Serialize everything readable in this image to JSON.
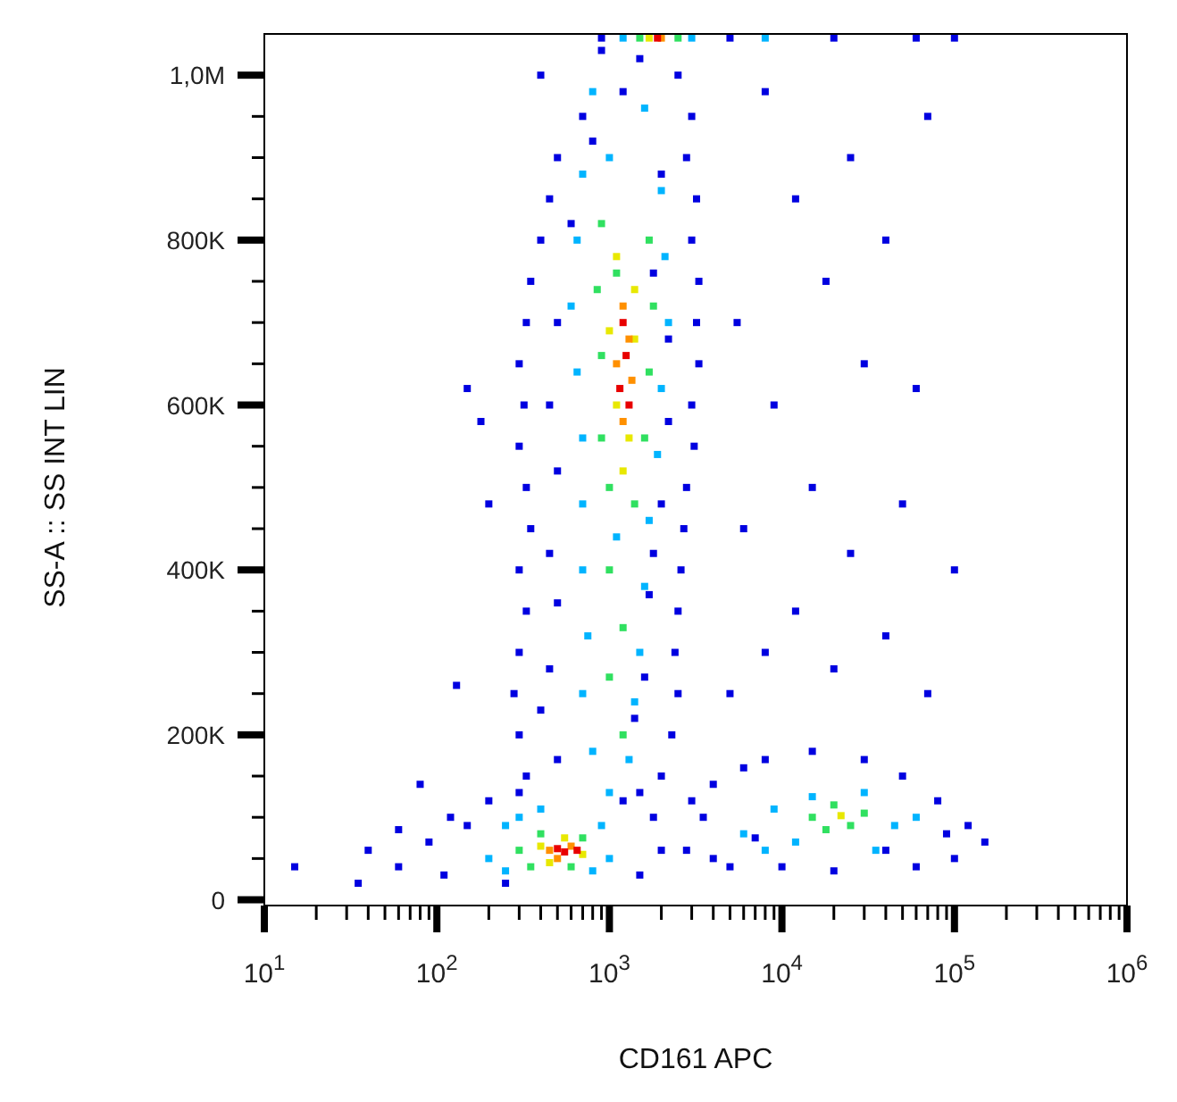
{
  "chart_data": {
    "type": "scatter",
    "xlabel": "CD161 APC",
    "ylabel": "SS-A :: SS INT LIN",
    "log": "x",
    "marker": "square",
    "xlim": [
      10,
      1000000
    ],
    "ylim": [
      -7000,
      1050000
    ],
    "xticks": [
      {
        "value": 10,
        "label": "10$^{1}$"
      },
      {
        "value": 20,
        "label": null
      },
      {
        "value": 30,
        "label": null
      },
      {
        "value": 40,
        "label": null
      },
      {
        "value": 50,
        "label": null
      },
      {
        "value": 60,
        "label": null
      },
      {
        "value": 70,
        "label": null
      },
      {
        "value": 80,
        "label": null
      },
      {
        "value": 90,
        "label": null
      },
      {
        "value": 100,
        "label": "10$^{2}$"
      },
      {
        "value": 200,
        "label": null
      },
      {
        "value": 300,
        "label": null
      },
      {
        "value": 400,
        "label": null
      },
      {
        "value": 500,
        "label": null
      },
      {
        "value": 600,
        "label": null
      },
      {
        "value": 700,
        "label": null
      },
      {
        "value": 800,
        "label": null
      },
      {
        "value": 900,
        "label": null
      },
      {
        "value": 1000,
        "label": "10$^{3}$"
      },
      {
        "value": 2000,
        "label": null
      },
      {
        "value": 3000,
        "label": null
      },
      {
        "value": 4000,
        "label": null
      },
      {
        "value": 5000,
        "label": null
      },
      {
        "value": 6000,
        "label": null
      },
      {
        "value": 7000,
        "label": null
      },
      {
        "value": 8000,
        "label": null
      },
      {
        "value": 9000,
        "label": null
      },
      {
        "value": 10000,
        "label": "10$^{4}$"
      },
      {
        "value": 20000,
        "label": null
      },
      {
        "value": 30000,
        "label": null
      },
      {
        "value": 40000,
        "label": null
      },
      {
        "value": 50000,
        "label": null
      },
      {
        "value": 60000,
        "label": null
      },
      {
        "value": 70000,
        "label": null
      },
      {
        "value": 80000,
        "label": null
      },
      {
        "value": 90000,
        "label": null
      },
      {
        "value": 100000,
        "label": "10$^{5}$"
      },
      {
        "value": 200000,
        "label": null
      },
      {
        "value": 300000,
        "label": null
      },
      {
        "value": 400000,
        "label": null
      },
      {
        "value": 500000,
        "label": null
      },
      {
        "value": 600000,
        "label": null
      },
      {
        "value": 700000,
        "label": null
      },
      {
        "value": 800000,
        "label": null
      },
      {
        "value": 900000,
        "label": null
      },
      {
        "value": 1000000,
        "label": "10$^{6}$"
      }
    ],
    "yticks": [
      {
        "value": 0,
        "label": "0"
      },
      {
        "value": 50000,
        "label": null
      },
      {
        "value": 100000,
        "label": null
      },
      {
        "value": 150000,
        "label": null
      },
      {
        "value": 200000,
        "label": "200K"
      },
      {
        "value": 250000,
        "label": null
      },
      {
        "value": 300000,
        "label": null
      },
      {
        "value": 350000,
        "label": null
      },
      {
        "value": 400000,
        "label": "400K"
      },
      {
        "value": 450000,
        "label": null
      },
      {
        "value": 500000,
        "label": null
      },
      {
        "value": 550000,
        "label": null
      },
      {
        "value": 600000,
        "label": "600K"
      },
      {
        "value": 650000,
        "label": null
      },
      {
        "value": 700000,
        "label": null
      },
      {
        "value": 750000,
        "label": null
      },
      {
        "value": 800000,
        "label": "800K"
      },
      {
        "value": 850000,
        "label": null
      },
      {
        "value": 900000,
        "label": null
      },
      {
        "value": 950000,
        "label": null
      },
      {
        "value": 1000000,
        "label": "1,0M"
      }
    ],
    "series": [
      {
        "color": "#0000e0",
        "x": [
          400,
          2500,
          700,
          3000,
          500,
          2800,
          450,
          3200,
          400,
          3000,
          350,
          3300,
          330,
          3200,
          300,
          3300,
          320,
          3000,
          300,
          3100,
          330,
          2800,
          350,
          2700,
          300,
          2600,
          330,
          2500,
          300,
          2400,
          280,
          2500,
          300,
          2300,
          330,
          2000,
          1500,
          900,
          1200,
          800,
          2000,
          600,
          1800,
          500,
          2200,
          450,
          2200,
          500,
          2000,
          450,
          1800,
          500,
          1700,
          450,
          1600,
          400,
          1400,
          500,
          1500,
          150,
          180,
          200,
          130,
          80,
          15,
          40,
          60,
          35,
          60,
          90,
          120,
          150,
          110,
          200,
          250,
          1500,
          2000,
          1800,
          1200,
          300,
          2800,
          3500,
          4000,
          5000,
          6000,
          8000,
          15000,
          30000,
          50000,
          80000,
          120000,
          150000,
          100000,
          60000,
          20000,
          10000,
          4000,
          7000,
          40000,
          90000,
          3000,
          5000,
          8000,
          12000,
          20000,
          40000,
          70000,
          6000,
          15000,
          25000,
          50000,
          9000,
          30000,
          60000,
          5500,
          18000,
          40000,
          12000,
          25000,
          70000,
          8000,
          100000,
          900,
          5000,
          20000,
          60000,
          100000
        ],
        "values": [
          1000000,
          1000000,
          950000,
          950000,
          900000,
          900000,
          850000,
          850000,
          800000,
          800000,
          750000,
          750000,
          700000,
          700000,
          650000,
          650000,
          600000,
          600000,
          550000,
          550000,
          500000,
          500000,
          450000,
          450000,
          400000,
          400000,
          350000,
          350000,
          300000,
          300000,
          250000,
          250000,
          200000,
          200000,
          150000,
          150000,
          1020000,
          1030000,
          980000,
          920000,
          880000,
          820000,
          760000,
          700000,
          680000,
          600000,
          580000,
          520000,
          480000,
          420000,
          420000,
          360000,
          370000,
          280000,
          270000,
          230000,
          220000,
          170000,
          130000,
          620000,
          580000,
          480000,
          260000,
          140000,
          40000,
          60000,
          85000,
          20000,
          40000,
          70000,
          100000,
          90000,
          30000,
          120000,
          20000,
          30000,
          60000,
          100000,
          120000,
          130000,
          60000,
          100000,
          140000,
          40000,
          160000,
          170000,
          180000,
          170000,
          150000,
          120000,
          90000,
          70000,
          50000,
          40000,
          35000,
          40000,
          50000,
          75000,
          60000,
          80000,
          120000,
          250000,
          300000,
          350000,
          280000,
          320000,
          250000,
          450000,
          500000,
          420000,
          480000,
          600000,
          650000,
          620000,
          700000,
          750000,
          800000,
          850000,
          900000,
          950000,
          980000,
          400000,
          1045000,
          1045000,
          1045000,
          1045000,
          1045000
        ]
      },
      {
        "color": "#00b4ff",
        "x": [
          800,
          1600,
          700,
          2000,
          650,
          2100,
          600,
          2200,
          650,
          2000,
          700,
          1900,
          700,
          1700,
          700,
          1600,
          750,
          1500,
          700,
          1400,
          800,
          1300,
          1000,
          1100,
          1000,
          200,
          250,
          300,
          900,
          1000,
          800,
          250,
          400,
          6000,
          9000,
          12000,
          30000,
          45000,
          35000,
          15000,
          60000,
          8000,
          1200,
          3000,
          8000
        ],
        "values": [
          980000,
          960000,
          880000,
          860000,
          800000,
          780000,
          720000,
          700000,
          640000,
          620000,
          560000,
          540000,
          480000,
          460000,
          400000,
          380000,
          320000,
          300000,
          250000,
          240000,
          180000,
          170000,
          130000,
          440000,
          900000,
          50000,
          90000,
          100000,
          90000,
          50000,
          35000,
          35000,
          110000,
          80000,
          110000,
          70000,
          130000,
          90000,
          60000,
          125000,
          100000,
          60000,
          1045000,
          1045000,
          1045000
        ]
      },
      {
        "color": "#30e060",
        "x": [
          900,
          1700,
          850,
          1800,
          900,
          1700,
          900,
          1600,
          1000,
          1400,
          1000,
          1200,
          1000,
          1200,
          1100,
          300,
          400,
          700,
          600,
          350,
          15000,
          20000,
          25000,
          30000,
          18000,
          1500,
          2500
        ],
        "values": [
          820000,
          800000,
          740000,
          720000,
          660000,
          640000,
          560000,
          560000,
          500000,
          480000,
          400000,
          330000,
          270000,
          200000,
          760000,
          60000,
          80000,
          75000,
          40000,
          40000,
          100000,
          115000,
          90000,
          105000,
          85000,
          1045000,
          1045000
        ]
      },
      {
        "color": "#e8e800",
        "x": [
          1100,
          1400,
          1000,
          1400,
          1100,
          1300,
          1200,
          400,
          550,
          700,
          450,
          22000,
          1700
        ],
        "values": [
          780000,
          740000,
          690000,
          680000,
          600000,
          560000,
          520000,
          65000,
          75000,
          55000,
          45000,
          102000,
          1045000
        ]
      },
      {
        "color": "#ff9000",
        "x": [
          1200,
          1100,
          1350,
          1200,
          1300,
          450,
          600,
          500,
          2000
        ],
        "values": [
          720000,
          650000,
          630000,
          580000,
          680000,
          60000,
          65000,
          50000,
          1045000
        ]
      },
      {
        "color": "#e80000",
        "x": [
          1250,
          1150,
          1300,
          1200,
          550,
          650,
          500,
          1900
        ],
        "values": [
          660000,
          620000,
          600000,
          700000,
          58000,
          60000,
          62000,
          1045000
        ]
      }
    ]
  }
}
